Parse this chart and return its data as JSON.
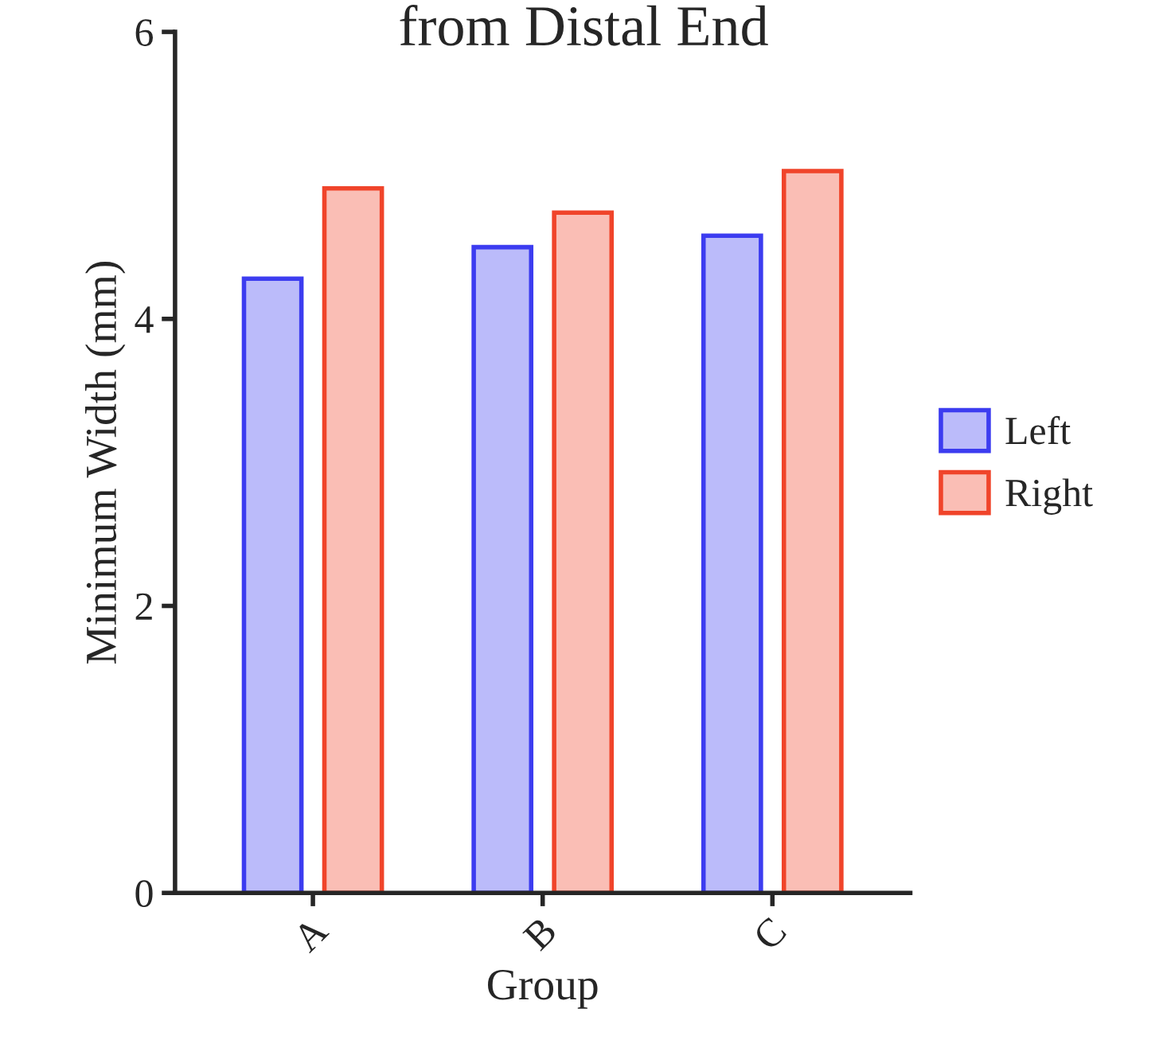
{
  "chart_data": {
    "type": "bar",
    "title": "from Distal End",
    "xlabel": "Group",
    "ylabel": "Minimum Width (mm)",
    "categories": [
      "A",
      "B",
      "C"
    ],
    "series": [
      {
        "name": "Left",
        "color": "#3c3cf0",
        "values": [
          4.28,
          4.5,
          4.58
        ]
      },
      {
        "name": "Right",
        "color": "#f0442a",
        "values": [
          4.91,
          4.74,
          5.03
        ]
      }
    ],
    "ylim": [
      0,
      6
    ],
    "yticks": [
      0,
      2,
      4,
      6
    ],
    "grid": false,
    "legend": "right"
  }
}
